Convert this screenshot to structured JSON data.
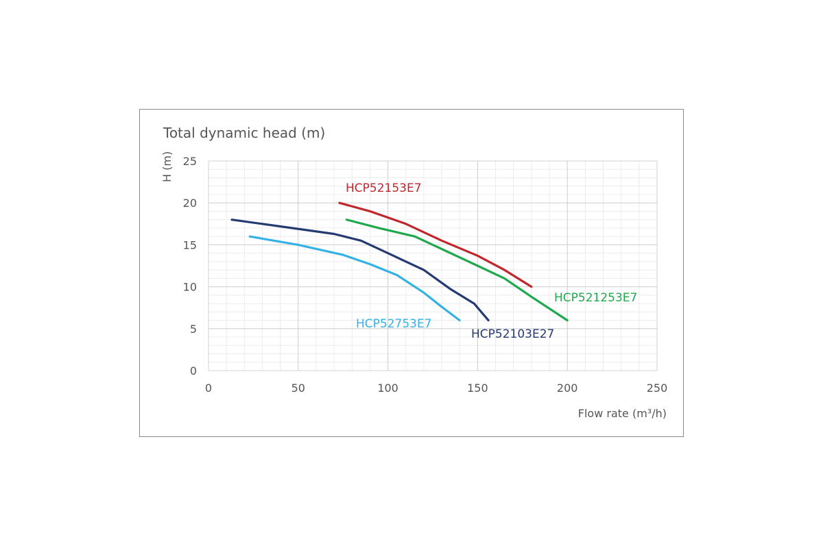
{
  "chart_data": {
    "type": "line",
    "title": "Total dynamic head (m)",
    "ylabel": "H (m)",
    "xlabel": "Flow rate (m³/h)",
    "xlim": [
      0,
      250
    ],
    "ylim": [
      0,
      25
    ],
    "xticks": [
      0,
      50,
      100,
      150,
      200,
      250
    ],
    "yticks": [
      0,
      5,
      10,
      15,
      20,
      25
    ],
    "grid": true,
    "series": [
      {
        "name": "HCP52153E7",
        "color": "#c0272d",
        "x": [
          73,
          90,
          110,
          130,
          150,
          165,
          180
        ],
        "y": [
          20,
          19,
          17.5,
          15.5,
          13.7,
          12,
          10
        ]
      },
      {
        "name": "HCP521253E7",
        "color": "#1fa84d",
        "x": [
          77,
          95,
          115,
          130,
          150,
          165,
          180,
          200
        ],
        "y": [
          18,
          17,
          16,
          14.5,
          12.5,
          11,
          8.8,
          6
        ]
      },
      {
        "name": "HCP52103E27",
        "color": "#253a73",
        "x": [
          13,
          40,
          70,
          85,
          100,
          120,
          135,
          148,
          156
        ],
        "y": [
          18,
          17.2,
          16.3,
          15.5,
          14,
          12,
          9.7,
          8,
          6
        ]
      },
      {
        "name": "HCP52753E7",
        "color": "#35b1e6",
        "x": [
          23,
          50,
          75,
          90,
          105,
          120,
          130,
          140
        ],
        "y": [
          16,
          15,
          13.8,
          12.7,
          11.4,
          9.3,
          7.6,
          6
        ]
      }
    ]
  }
}
